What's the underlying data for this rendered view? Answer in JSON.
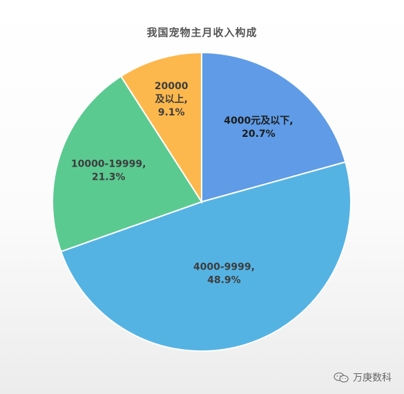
{
  "chart_data": {
    "type": "pie",
    "title": "我国宠物主月收入构成",
    "slices": [
      {
        "category": "4000元及以下",
        "value": 20.7,
        "label_lines": [
          "4000元及以下,",
          "20.7%"
        ],
        "color": "#5f9be6"
      },
      {
        "category": "4000-9999",
        "value": 48.9,
        "label_lines": [
          "4000-9999,",
          "48.9%"
        ],
        "color": "#55b3e3"
      },
      {
        "category": "10000-19999",
        "value": 21.3,
        "label_lines": [
          "10000-19999,",
          "21.3%"
        ],
        "color": "#5bca91"
      },
      {
        "category": "20000及以上",
        "value": 9.1,
        "label_lines": [
          "20000",
          "及以上,",
          "9.1%"
        ],
        "color": "#fdb84d"
      }
    ]
  },
  "watermark": {
    "text": "万庚数科",
    "icon": "wechat-icon"
  }
}
